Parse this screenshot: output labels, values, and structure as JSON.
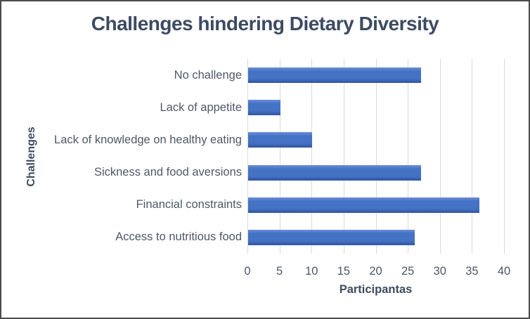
{
  "chart_data": {
    "type": "bar",
    "orientation": "horizontal",
    "title": "Challenges hindering Dietary Diversity",
    "categories": [
      "No challenge",
      "Lack of appetite",
      "Lack of knowledge on healthy eating",
      "Sickness and food aversions",
      "Financial constraints",
      "Access to nutritious food"
    ],
    "values": [
      27,
      5,
      10,
      27,
      36,
      26
    ],
    "xlabel": "Participantas",
    "ylabel": "Challenges",
    "xlim": [
      0,
      40
    ],
    "xticks": [
      0,
      5,
      10,
      15,
      20,
      25,
      30,
      35,
      40
    ],
    "grid": true,
    "legend": false,
    "colors": {
      "bar_fill": "#4472c4",
      "bar_fill_light": "#6b8fd8",
      "bar_fill_dark": "#30549e",
      "gridline": "#d9d9d9",
      "title_text": "#3d4b61",
      "axis_text": "#4d5868",
      "frame_border": "#4b4b4b",
      "background": "#ffffff"
    }
  }
}
